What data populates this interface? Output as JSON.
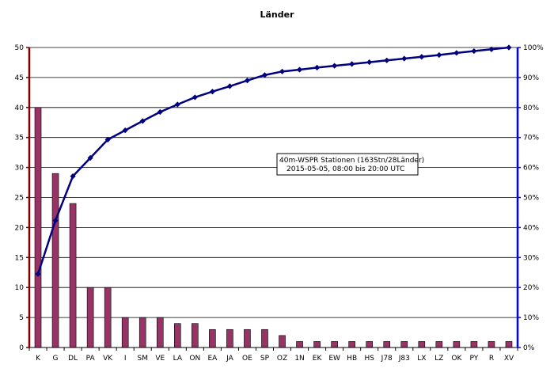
{
  "chart_data": {
    "type": "bar",
    "title": "Länder",
    "categories": [
      "K",
      "G",
      "DL",
      "PA",
      "VK",
      "I",
      "SM",
      "VE",
      "LA",
      "ON",
      "EA",
      "JA",
      "OE",
      "SP",
      "OZ",
      "1N",
      "EK",
      "EW",
      "HB",
      "HS",
      "J78",
      "J83",
      "LX",
      "LZ",
      "OK",
      "PY",
      "R",
      "XV"
    ],
    "series": [
      {
        "kind": "bar",
        "axis": "left",
        "values": [
          40,
          29,
          24,
          10,
          10,
          5,
          5,
          5,
          4,
          4,
          3,
          3,
          3,
          3,
          2,
          1,
          1,
          1,
          1,
          1,
          1,
          1,
          1,
          1,
          1,
          1,
          1,
          1
        ]
      },
      {
        "kind": "line",
        "axis": "right",
        "values": [
          24.5,
          42.3,
          57.1,
          63.2,
          69.3,
          72.4,
          75.5,
          78.5,
          81.0,
          83.4,
          85.3,
          87.1,
          89.0,
          90.8,
          92.0,
          92.6,
          93.3,
          93.9,
          94.5,
          95.1,
          95.7,
          96.3,
          96.9,
          97.5,
          98.2,
          98.8,
          99.4,
          100.0
        ]
      }
    ],
    "y_left": {
      "range": [
        0,
        50
      ],
      "ticks": [
        "0",
        "5",
        "10",
        "15",
        "20",
        "25",
        "30",
        "35",
        "40",
        "45",
        "50"
      ]
    },
    "y_right": {
      "range": [
        0,
        100
      ],
      "ticks": [
        "0%",
        "10%",
        "20%",
        "30%",
        "40%",
        "50%",
        "60%",
        "70%",
        "80%",
        "90%",
        "100%"
      ]
    },
    "grid": true,
    "annotation": {
      "line1": "40m-WSPR Stationen (163Stn/28Länder)",
      "line2": "2015-05-05, 08:00 bis 20:00 UTC"
    },
    "colors": {
      "bar": "#993366",
      "line": "#000080",
      "left_axis": "#800000",
      "right_axis": "#0000ff",
      "grid": "#000000"
    }
  }
}
